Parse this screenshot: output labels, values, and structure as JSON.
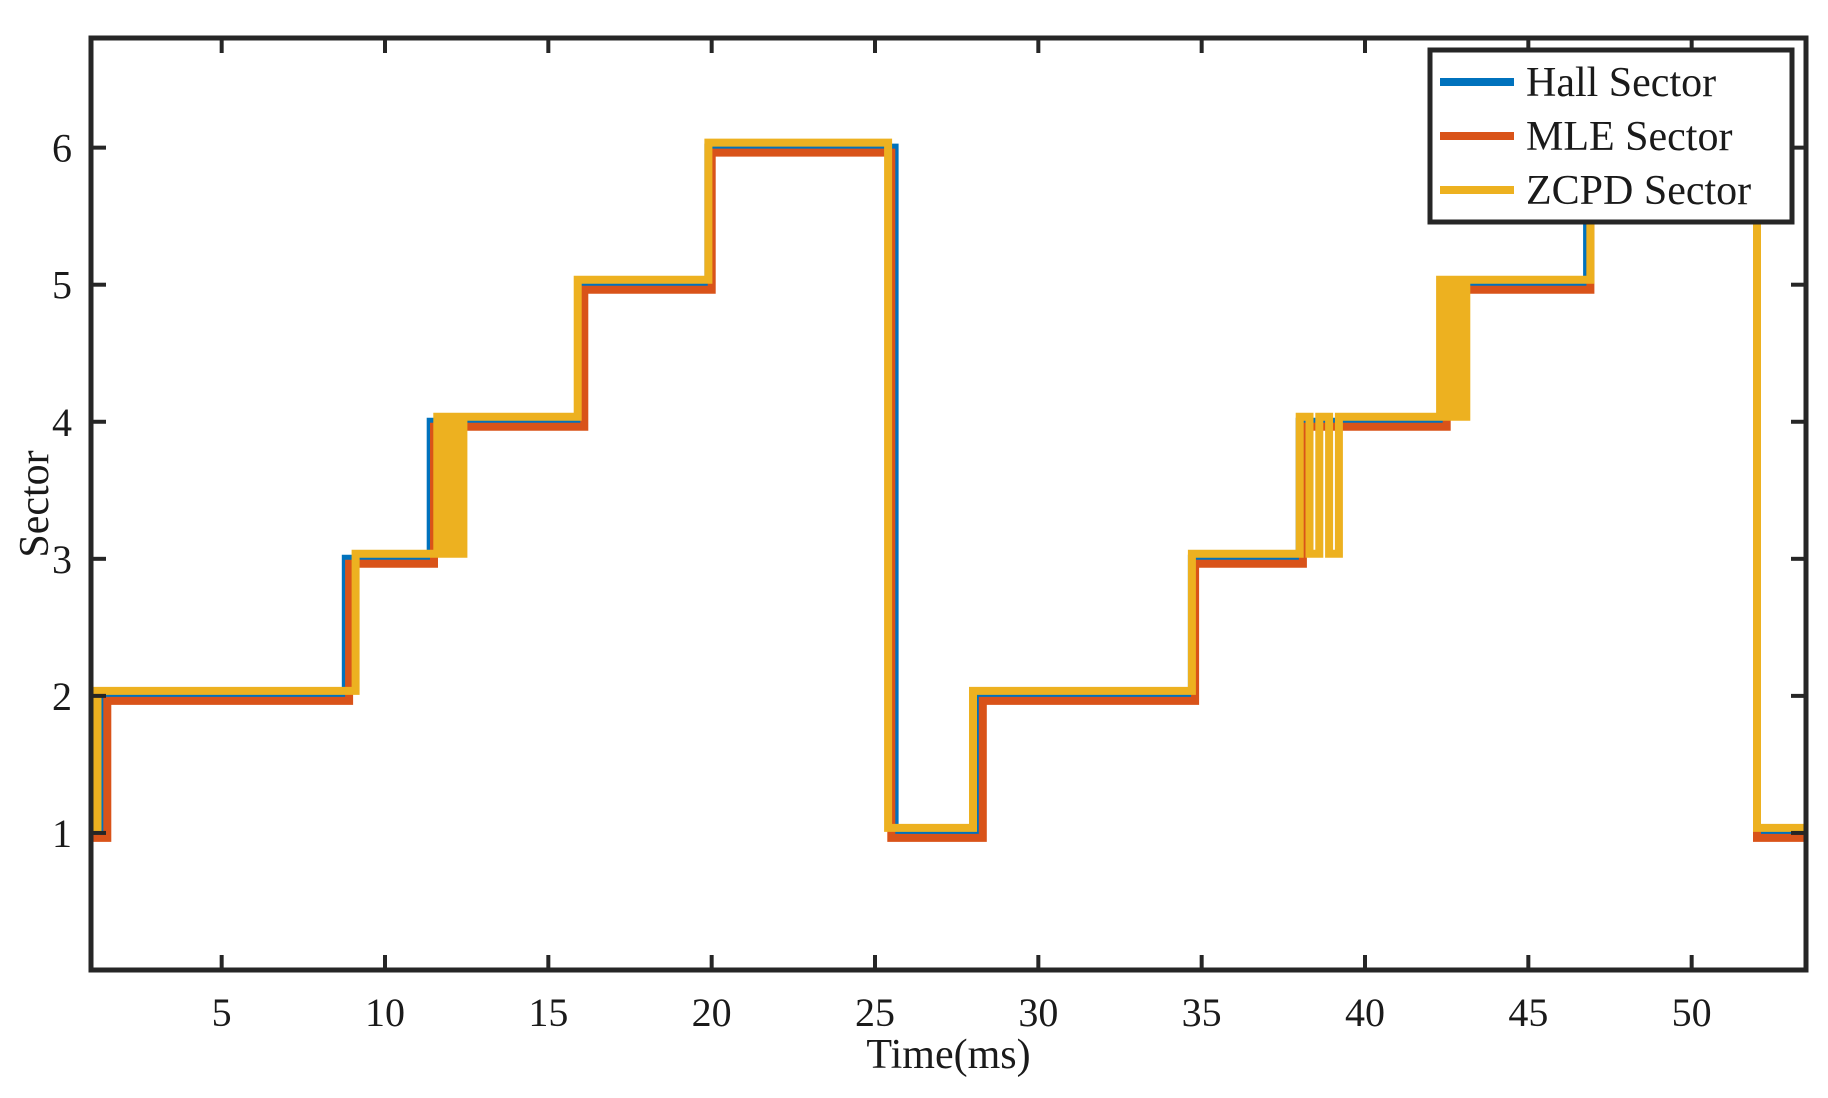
{
  "chart_data": {
    "type": "line",
    "step": true,
    "title": "",
    "xlabel": "Time(ms)",
    "ylabel": "Sector",
    "xlim": [
      1,
      53.5
    ],
    "ylim": [
      0,
      6.8
    ],
    "xticks": [
      5,
      10,
      15,
      20,
      25,
      30,
      35,
      40,
      45,
      50
    ],
    "yticks": [
      1,
      2,
      3,
      4,
      5,
      6
    ],
    "grid": false,
    "legend": {
      "position": "top-right"
    },
    "series": [
      {
        "name": "Hall Sector",
        "color": "#0072BD",
        "points": [
          [
            1.0,
            1
          ],
          [
            1.4,
            1
          ],
          [
            1.4,
            2
          ],
          [
            8.8,
            2
          ],
          [
            8.8,
            3
          ],
          [
            11.4,
            3
          ],
          [
            11.4,
            4
          ],
          [
            16.0,
            4
          ],
          [
            16.0,
            5
          ],
          [
            19.9,
            5
          ],
          [
            19.9,
            6
          ],
          [
            25.6,
            6
          ],
          [
            25.6,
            1
          ],
          [
            28.1,
            1
          ],
          [
            28.1,
            2
          ],
          [
            34.7,
            2
          ],
          [
            34.7,
            3
          ],
          [
            38.0,
            3
          ],
          [
            38.0,
            4
          ],
          [
            42.4,
            4
          ],
          [
            42.4,
            5
          ],
          [
            46.8,
            5
          ],
          [
            46.8,
            6
          ],
          [
            52.0,
            6
          ],
          [
            52.0,
            1
          ],
          [
            53.5,
            1
          ]
        ]
      },
      {
        "name": "MLE Sector",
        "color": "#D95319",
        "points": [
          [
            1.0,
            1
          ],
          [
            1.5,
            1
          ],
          [
            1.5,
            2
          ],
          [
            8.9,
            2
          ],
          [
            8.9,
            3
          ],
          [
            11.5,
            3
          ],
          [
            11.5,
            4
          ],
          [
            16.1,
            4
          ],
          [
            16.1,
            5
          ],
          [
            20.0,
            5
          ],
          [
            20.0,
            6
          ],
          [
            25.5,
            6
          ],
          [
            25.5,
            1
          ],
          [
            28.3,
            1
          ],
          [
            28.3,
            2
          ],
          [
            34.8,
            2
          ],
          [
            34.8,
            3
          ],
          [
            38.1,
            3
          ],
          [
            38.1,
            4
          ],
          [
            42.5,
            4
          ],
          [
            42.5,
            5
          ],
          [
            46.9,
            5
          ],
          [
            46.9,
            6
          ],
          [
            52.0,
            6
          ],
          [
            52.0,
            1
          ],
          [
            53.5,
            1
          ]
        ]
      },
      {
        "name": "ZCPD Sector",
        "color": "#EDB120",
        "points": [
          [
            1.0,
            1
          ],
          [
            1.2,
            1
          ],
          [
            1.2,
            2
          ],
          [
            9.1,
            2
          ],
          [
            9.1,
            3
          ],
          [
            11.6,
            3
          ],
          [
            11.6,
            4
          ],
          [
            11.8,
            4
          ],
          [
            11.8,
            3
          ],
          [
            12.0,
            3
          ],
          [
            12.0,
            4
          ],
          [
            12.2,
            4
          ],
          [
            12.2,
            3
          ],
          [
            12.4,
            3
          ],
          [
            12.4,
            4
          ],
          [
            15.9,
            4
          ],
          [
            15.9,
            5
          ],
          [
            19.9,
            5
          ],
          [
            19.9,
            6
          ],
          [
            25.4,
            6
          ],
          [
            25.4,
            1
          ],
          [
            28.0,
            1
          ],
          [
            28.0,
            2
          ],
          [
            34.7,
            2
          ],
          [
            34.7,
            3
          ],
          [
            38.0,
            3
          ],
          [
            38.0,
            4
          ],
          [
            38.3,
            4
          ],
          [
            38.3,
            3
          ],
          [
            38.6,
            3
          ],
          [
            38.6,
            4
          ],
          [
            38.9,
            4
          ],
          [
            38.9,
            3
          ],
          [
            39.2,
            3
          ],
          [
            39.2,
            4
          ],
          [
            42.3,
            4
          ],
          [
            42.3,
            5
          ],
          [
            42.5,
            5
          ],
          [
            42.5,
            4
          ],
          [
            42.7,
            4
          ],
          [
            42.7,
            5
          ],
          [
            42.9,
            5
          ],
          [
            42.9,
            4
          ],
          [
            43.1,
            4
          ],
          [
            43.1,
            5
          ],
          [
            46.9,
            5
          ],
          [
            46.9,
            6
          ],
          [
            52.0,
            6
          ],
          [
            52.0,
            1
          ],
          [
            53.5,
            1
          ]
        ]
      }
    ]
  }
}
